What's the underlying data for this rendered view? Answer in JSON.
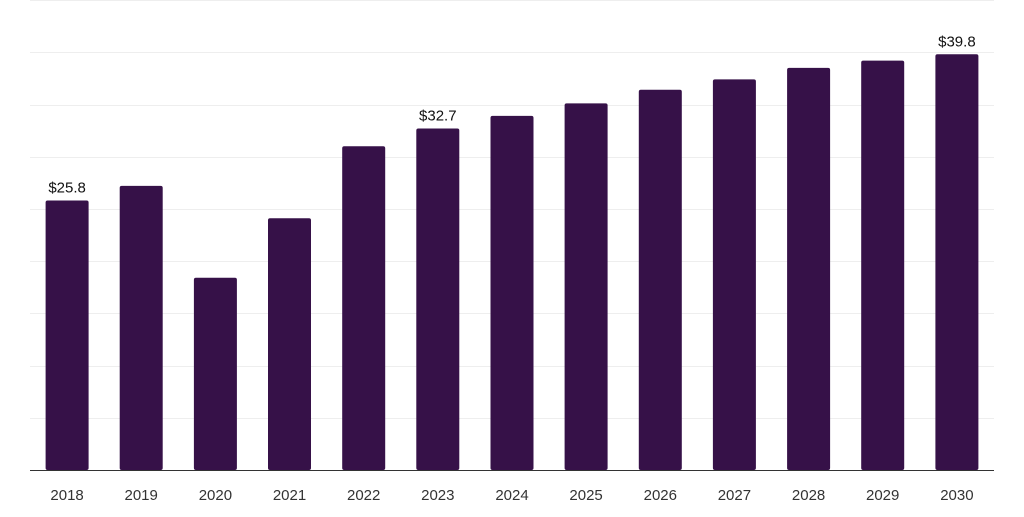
{
  "chart_data": {
    "type": "bar",
    "categories": [
      "2018",
      "2019",
      "2020",
      "2021",
      "2022",
      "2023",
      "2024",
      "2025",
      "2026",
      "2027",
      "2028",
      "2029",
      "2030"
    ],
    "values": [
      25.8,
      27.2,
      18.4,
      24.1,
      31.0,
      32.7,
      33.9,
      35.1,
      36.4,
      37.4,
      38.5,
      39.2,
      39.8
    ],
    "data_labels": [
      "$25.8",
      "",
      "",
      "",
      "",
      "$32.7",
      "",
      "",
      "",
      "",
      "",
      "",
      "$39.8"
    ],
    "title": "",
    "xlabel": "",
    "ylabel": "",
    "ylim": [
      0,
      45
    ],
    "grid": true,
    "legend": "none",
    "bar_color": "#361148",
    "grid_color": "#eeeeee",
    "axis_color": "#333333"
  }
}
